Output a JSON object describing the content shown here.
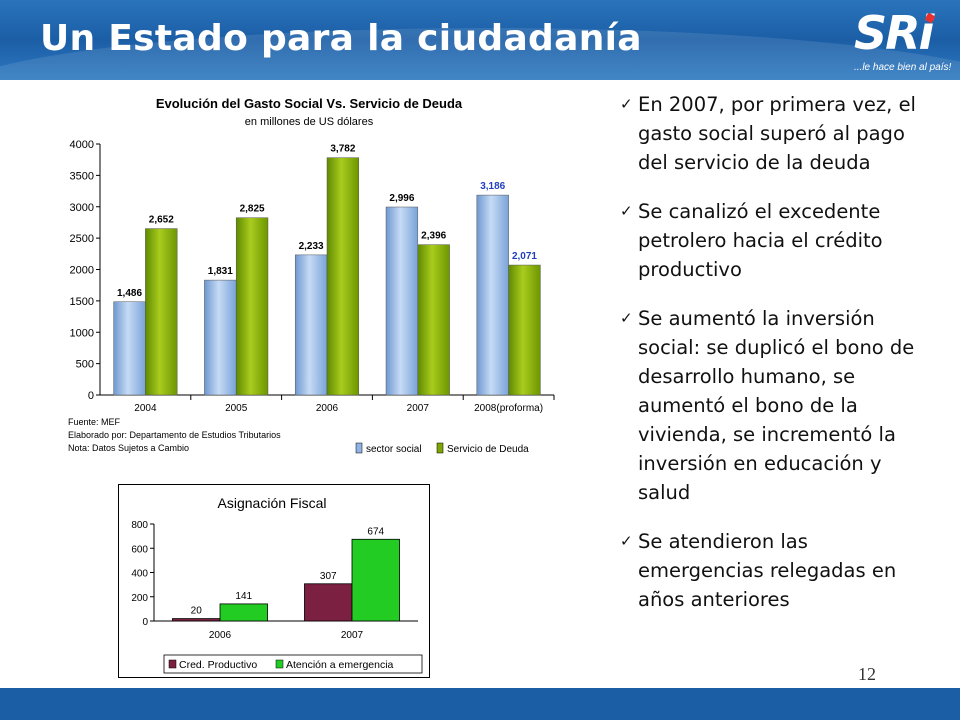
{
  "slide": {
    "title": "Un Estado para la ciudadanía",
    "logo_text": "SRi",
    "logo_slogan": "...le hace bien al país!",
    "page_number": "12",
    "colors": {
      "header": "#1b5ea6",
      "bar_social": "#8fb4e3",
      "bar_deuda": "#7fa600",
      "bar_cred": "#7b2040",
      "bar_atencion": "#22cc22"
    }
  },
  "bullets": [
    "En 2007, por primera vez, el gasto social superó al pago del servicio de la deuda",
    "Se canalizó el excedente petrolero hacia el crédito productivo",
    "Se aumentó la inversión social: se duplicó el bono de desarrollo humano, se aumentó el bono de la vivienda, se incrementó la inversión en educación y salud",
    "Se atendieron las emergencias relegadas en años anteriores"
  ],
  "chart_data": [
    {
      "type": "bar",
      "title": "Evolución del Gasto Social Vs. Servicio de Deuda",
      "subtitle": "en millones de US dólares",
      "categories": [
        "2004",
        "2005",
        "2006",
        "2007",
        "2008(proforma)"
      ],
      "series": [
        {
          "name": "sector social",
          "values": [
            1486,
            1831,
            2233,
            2996,
            3186
          ],
          "labels": [
            "1,486",
            "1,831",
            "2,233",
            "2,996",
            "3,186"
          ]
        },
        {
          "name": "Servicio de Deuda",
          "values": [
            2652,
            2825,
            3782,
            2396,
            2071
          ],
          "labels": [
            "2,652",
            "2,825",
            "3,782",
            "2,396",
            "2,071"
          ]
        }
      ],
      "yticks": [
        "0",
        "500",
        "1000",
        "1500",
        "2000",
        "2500",
        "3000",
        "3500",
        "4000"
      ],
      "ylim": [
        0,
        4000
      ],
      "notes": [
        "Fuente: MEF",
        "Elaborado por: Departamento de Estudios Tributarios",
        "Nota: Datos Sujetos a Cambio"
      ],
      "legend_position": "bottom-right",
      "grid": false
    },
    {
      "type": "bar",
      "title": "Asignación Fiscal",
      "categories": [
        "2006",
        "2007"
      ],
      "series": [
        {
          "name": "Cred. Productivo",
          "values": [
            20,
            307
          ],
          "labels": [
            "20",
            "307"
          ]
        },
        {
          "name": "Atención a emergencia",
          "values": [
            141,
            674
          ],
          "labels": [
            "141",
            "674"
          ]
        }
      ],
      "yticks": [
        "0",
        "200",
        "400",
        "600",
        "800"
      ],
      "ylim": [
        0,
        800
      ],
      "legend_position": "bottom",
      "grid": false
    }
  ]
}
